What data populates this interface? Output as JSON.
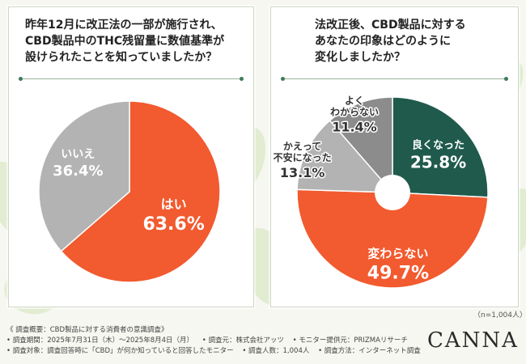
{
  "colors": {
    "orange": "#f25a2f",
    "gray": "#b3b3b3",
    "dark_gray": "#8c8c8c",
    "dark_green": "#1f5a4c",
    "background": "#f5f7f0"
  },
  "left_card": {
    "title": "昨年12月に改正法の一部が施行され、\nCBD製品中のTHC残留量に数値基準が\n設けられたことを知っていましたか？"
  },
  "right_card": {
    "title": "法改正後、CBD製品に対する\nあなたの印象はどのように\n変化しましたか？"
  },
  "chart_data": [
    {
      "type": "pie",
      "title": "",
      "slices": [
        {
          "label": "はい",
          "value": 63.6,
          "display": "63.6%",
          "color": "#f25a2f"
        },
        {
          "label": "いいえ",
          "value": 36.4,
          "display": "36.4%",
          "color": "#b3b3b3"
        }
      ]
    },
    {
      "type": "pie",
      "donut": true,
      "title": "",
      "slices": [
        {
          "label": "良くなった",
          "value": 25.8,
          "display": "25.8%",
          "color": "#1f5a4c"
        },
        {
          "label": "変わらない",
          "value": 49.7,
          "display": "49.7%",
          "color": "#f25a2f"
        },
        {
          "label": "かえって\n不安になった",
          "value": 13.1,
          "display": "13.1%",
          "color": "#b3b3b3"
        },
        {
          "label": "よく\nわからない",
          "value": 11.4,
          "display": "11.4%",
          "color": "#8c8c8c"
        }
      ]
    }
  ],
  "sample_note": "（n=1,004人）",
  "footer": {
    "line1": "《 調査概要：CBD製品に対する消費者の意識調査》",
    "period": "• 調査期間：2025年7月31日（木）～2025年8月4日（月）",
    "org": "• 調査元：株式会社アッツ",
    "monitor": "• モニター提供元：PRIZMAリサーチ",
    "target": "• 調査対象：調査回答時に「CBD」が何か知っていると回答したモニター",
    "count": "• 調査人数：1,004人",
    "method": "• 調査方法：インターネット調査"
  },
  "logo": "CANNA"
}
